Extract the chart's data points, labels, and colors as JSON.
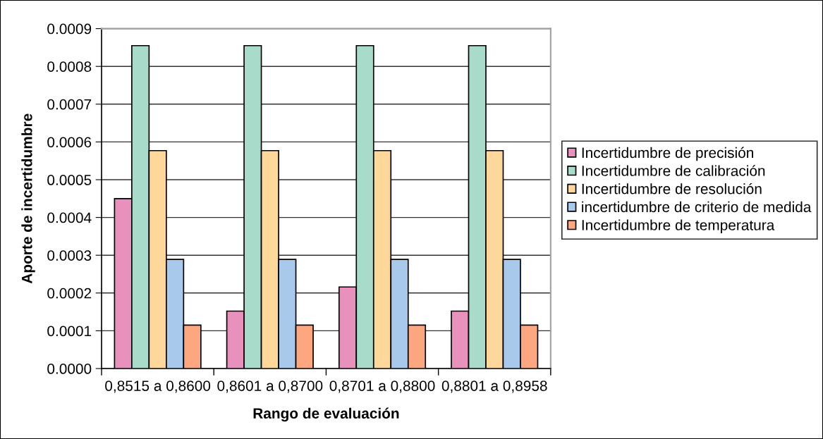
{
  "chart_data": {
    "type": "bar",
    "xlabel": "Rango de evaluación",
    "ylabel": "Aporte de incertidumbre",
    "categories": [
      "0,8515 a 0,8600",
      "0,8601 a 0,8700",
      "0,8701 a 0,8800",
      "0,8801 a 0,8958"
    ],
    "series": [
      {
        "name": "Incertidumbre de precisión",
        "color": "#e991bd",
        "values": [
          0.00045,
          0.000152,
          0.000216,
          0.000152
        ]
      },
      {
        "name": "Incertidumbre de calibración",
        "color": "#a8dbc9",
        "values": [
          0.000855,
          0.000855,
          0.000855,
          0.000855
        ]
      },
      {
        "name": "Incertidumbre de resolución",
        "color": "#fdd89a",
        "values": [
          0.000577,
          0.000577,
          0.000577,
          0.000577
        ]
      },
      {
        "name": "incertidumbre de criterio de medida",
        "color": "#a9c9ec",
        "values": [
          0.000289,
          0.000289,
          0.000289,
          0.000289
        ]
      },
      {
        "name": "Incertidumbre de temperatura",
        "color": "#fca77f",
        "values": [
          0.000115,
          0.000115,
          0.000115,
          0.000115
        ]
      }
    ],
    "ylim": [
      0,
      0.0009
    ],
    "yticks": [
      {
        "value": 0,
        "label": "0.0000"
      },
      {
        "value": 0.0001,
        "label": "0.0001"
      },
      {
        "value": 0.0002,
        "label": "0.0002"
      },
      {
        "value": 0.0003,
        "label": "0.0003"
      },
      {
        "value": 0.0004,
        "label": "0.0004"
      },
      {
        "value": 0.0005,
        "label": "0.0005"
      },
      {
        "value": 0.0006,
        "label": "0.0006"
      },
      {
        "value": 0.0007,
        "label": "0.0007"
      },
      {
        "value": 0.0008,
        "label": "0.0008"
      },
      {
        "value": 0.0009,
        "label": "0.0009"
      }
    ],
    "grid": "y",
    "legend": "right"
  }
}
